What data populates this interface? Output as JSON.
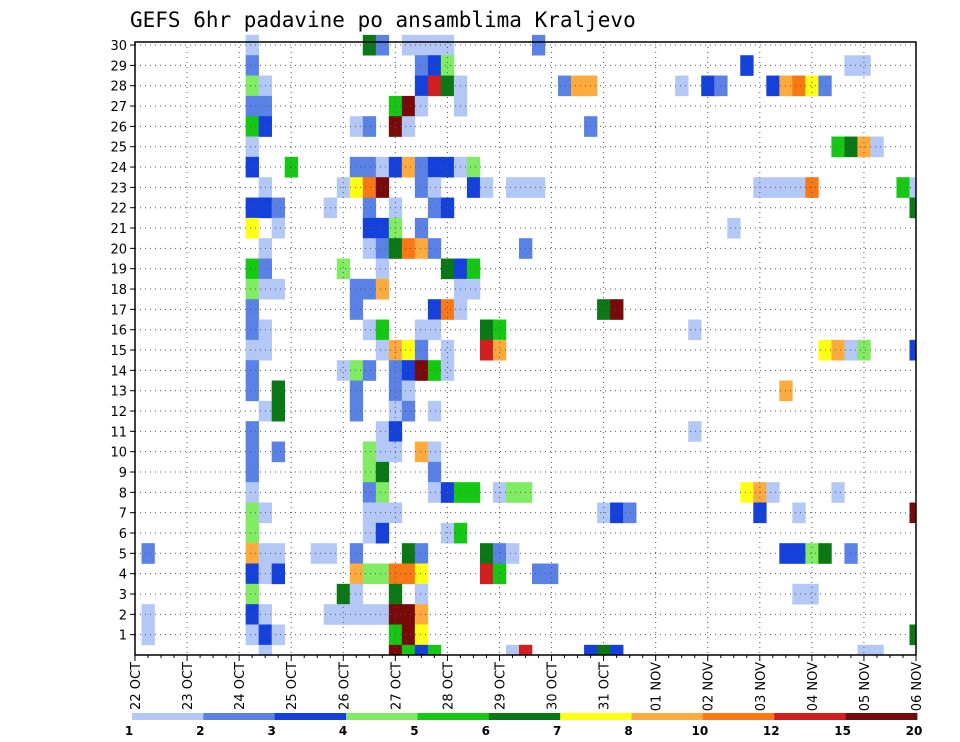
{
  "chart_data": {
    "type": "heatmap",
    "title": "GEFS 6hr padavine po ansamblima Kraljevo",
    "xlabel": "",
    "ylabel": "",
    "x_tick_labels": [
      "22 OCT",
      "23 OCT",
      "24 OCT",
      "25 OCT",
      "26 OCT",
      "27 OCT",
      "28 OCT",
      "29 OCT",
      "30 OCT",
      "31 OCT",
      "01 NOV",
      "02 NOV",
      "03 NOV",
      "04 NOV",
      "05 NOV",
      "06 NOV"
    ],
    "y_tick_labels": [
      "1",
      "2",
      "3",
      "4",
      "5",
      "6",
      "7",
      "8",
      "9",
      "10",
      "11",
      "12",
      "13",
      "14",
      "15",
      "16",
      "17",
      "18",
      "19",
      "20",
      "21",
      "22",
      "23",
      "24",
      "25",
      "26",
      "27",
      "28",
      "29",
      "30"
    ],
    "ylim": [
      0,
      30
    ],
    "time_steps": 61,
    "grid": true,
    "colorbar": {
      "labels": [
        "1",
        "2",
        "3",
        "4",
        "5",
        "6",
        "7",
        "8",
        "10",
        "12",
        "15",
        "20"
      ],
      "colors": [
        "#b4c8f8",
        "#5a82e6",
        "#1440dc",
        "#82eb64",
        "#14c814",
        "#0a7814",
        "#ffff14",
        "#ffaa3c",
        "#fa7814",
        "#d21e1e",
        "#780a0a"
      ]
    },
    "cells": [
      {
        "m": 30,
        "c": [
          [
            9,
            0
          ],
          [
            18,
            5
          ],
          [
            19,
            1
          ],
          [
            21,
            0
          ],
          [
            22,
            0
          ],
          [
            23,
            0
          ],
          [
            24,
            0
          ],
          [
            31,
            1
          ]
        ]
      },
      {
        "m": 29,
        "c": [
          [
            9,
            1
          ],
          [
            22,
            1
          ],
          [
            23,
            2
          ],
          [
            24,
            3
          ],
          [
            47,
            2
          ],
          [
            55,
            0
          ],
          [
            56,
            0
          ]
        ]
      },
      {
        "m": 28,
        "c": [
          [
            9,
            3
          ],
          [
            10,
            0
          ],
          [
            22,
            2
          ],
          [
            23,
            9
          ],
          [
            24,
            5
          ],
          [
            25,
            0
          ],
          [
            33,
            1
          ],
          [
            34,
            7
          ],
          [
            35,
            7
          ],
          [
            42,
            0
          ],
          [
            44,
            2
          ],
          [
            45,
            1
          ],
          [
            49,
            2
          ],
          [
            50,
            7
          ],
          [
            51,
            8
          ],
          [
            52,
            6
          ],
          [
            53,
            1
          ]
        ]
      },
      {
        "m": 27,
        "c": [
          [
            9,
            1
          ],
          [
            10,
            1
          ],
          [
            20,
            4
          ],
          [
            21,
            10
          ],
          [
            22,
            0
          ],
          [
            25,
            0
          ]
        ]
      },
      {
        "m": 26,
        "c": [
          [
            9,
            4
          ],
          [
            10,
            2
          ],
          [
            17,
            0
          ],
          [
            18,
            1
          ],
          [
            20,
            10
          ],
          [
            21,
            0
          ],
          [
            35,
            1
          ]
        ]
      },
      {
        "m": 25,
        "c": [
          [
            9,
            0
          ],
          [
            54,
            4
          ],
          [
            55,
            5
          ],
          [
            56,
            7
          ],
          [
            57,
            0
          ]
        ]
      },
      {
        "m": 24,
        "c": [
          [
            9,
            2
          ],
          [
            12,
            4
          ],
          [
            17,
            1
          ],
          [
            18,
            1
          ],
          [
            19,
            0
          ],
          [
            20,
            2
          ],
          [
            21,
            7
          ],
          [
            22,
            1
          ],
          [
            23,
            2
          ],
          [
            24,
            2
          ],
          [
            25,
            0
          ],
          [
            26,
            3
          ]
        ]
      },
      {
        "m": 23,
        "c": [
          [
            10,
            0
          ],
          [
            16,
            0
          ],
          [
            17,
            6
          ],
          [
            18,
            8
          ],
          [
            19,
            10
          ],
          [
            22,
            1
          ],
          [
            23,
            0
          ],
          [
            26,
            2
          ],
          [
            27,
            0
          ],
          [
            29,
            0
          ],
          [
            30,
            0
          ],
          [
            31,
            0
          ],
          [
            48,
            0
          ],
          [
            49,
            0
          ],
          [
            50,
            0
          ],
          [
            51,
            0
          ],
          [
            52,
            8
          ],
          [
            59,
            4
          ],
          [
            60,
            0
          ]
        ]
      },
      {
        "m": 22,
        "c": [
          [
            9,
            2
          ],
          [
            10,
            2
          ],
          [
            11,
            1
          ],
          [
            15,
            0
          ],
          [
            18,
            1
          ],
          [
            20,
            0
          ],
          [
            23,
            1
          ],
          [
            24,
            2
          ],
          [
            60,
            5
          ]
        ]
      },
      {
        "m": 21,
        "c": [
          [
            9,
            6
          ],
          [
            11,
            0
          ],
          [
            18,
            2
          ],
          [
            19,
            2
          ],
          [
            20,
            3
          ],
          [
            22,
            1
          ],
          [
            46,
            0
          ]
        ]
      },
      {
        "m": 20,
        "c": [
          [
            10,
            0
          ],
          [
            18,
            0
          ],
          [
            19,
            1
          ],
          [
            20,
            5
          ],
          [
            21,
            8
          ],
          [
            22,
            7
          ],
          [
            23,
            1
          ],
          [
            30,
            1
          ]
        ]
      },
      {
        "m": 19,
        "c": [
          [
            9,
            4
          ],
          [
            10,
            1
          ],
          [
            16,
            3
          ],
          [
            19,
            0
          ],
          [
            24,
            5
          ],
          [
            25,
            2
          ],
          [
            26,
            4
          ]
        ]
      },
      {
        "m": 18,
        "c": [
          [
            9,
            3
          ],
          [
            10,
            0
          ],
          [
            11,
            0
          ],
          [
            17,
            1
          ],
          [
            18,
            1
          ],
          [
            19,
            7
          ],
          [
            25,
            0
          ],
          [
            26,
            0
          ]
        ]
      },
      {
        "m": 17,
        "c": [
          [
            9,
            1
          ],
          [
            17,
            1
          ],
          [
            23,
            2
          ],
          [
            24,
            8
          ],
          [
            25,
            0
          ],
          [
            36,
            5
          ],
          [
            37,
            10
          ]
        ]
      },
      {
        "m": 16,
        "c": [
          [
            9,
            1
          ],
          [
            10,
            0
          ],
          [
            18,
            0
          ],
          [
            19,
            4
          ],
          [
            22,
            0
          ],
          [
            23,
            0
          ],
          [
            27,
            5
          ],
          [
            28,
            4
          ],
          [
            43,
            0
          ]
        ]
      },
      {
        "m": 15,
        "c": [
          [
            9,
            0
          ],
          [
            10,
            0
          ],
          [
            19,
            0
          ],
          [
            20,
            7
          ],
          [
            21,
            6
          ],
          [
            22,
            1
          ],
          [
            24,
            0
          ],
          [
            27,
            9
          ],
          [
            28,
            7
          ],
          [
            53,
            6
          ],
          [
            54,
            7
          ],
          [
            55,
            0
          ],
          [
            56,
            3
          ],
          [
            60,
            2
          ]
        ]
      },
      {
        "m": 14,
        "c": [
          [
            9,
            1
          ],
          [
            16,
            0
          ],
          [
            17,
            3
          ],
          [
            18,
            1
          ],
          [
            20,
            1
          ],
          [
            21,
            2
          ],
          [
            22,
            10
          ],
          [
            23,
            4
          ],
          [
            24,
            0
          ]
        ]
      },
      {
        "m": 13,
        "c": [
          [
            9,
            1
          ],
          [
            11,
            5
          ],
          [
            17,
            1
          ],
          [
            20,
            1
          ],
          [
            21,
            0
          ],
          [
            50,
            7
          ]
        ]
      },
      {
        "m": 12,
        "c": [
          [
            10,
            0
          ],
          [
            11,
            5
          ],
          [
            17,
            1
          ],
          [
            20,
            0
          ],
          [
            21,
            1
          ],
          [
            23,
            0
          ]
        ]
      },
      {
        "m": 11,
        "c": [
          [
            9,
            1
          ],
          [
            19,
            0
          ],
          [
            20,
            2
          ],
          [
            43,
            0
          ]
        ]
      },
      {
        "m": 10,
        "c": [
          [
            9,
            1
          ],
          [
            11,
            1
          ],
          [
            18,
            3
          ],
          [
            19,
            0
          ],
          [
            20,
            0
          ],
          [
            22,
            7
          ],
          [
            23,
            0
          ]
        ]
      },
      {
        "m": 9,
        "c": [
          [
            9,
            1
          ],
          [
            18,
            3
          ],
          [
            19,
            5
          ],
          [
            23,
            1
          ]
        ]
      },
      {
        "m": 8,
        "c": [
          [
            9,
            0
          ],
          [
            18,
            1
          ],
          [
            19,
            3
          ],
          [
            23,
            0
          ],
          [
            24,
            2
          ],
          [
            25,
            4
          ],
          [
            26,
            4
          ],
          [
            28,
            0
          ],
          [
            29,
            3
          ],
          [
            30,
            3
          ],
          [
            47,
            6
          ],
          [
            48,
            7
          ],
          [
            49,
            0
          ],
          [
            54,
            0
          ]
        ]
      },
      {
        "m": 7,
        "c": [
          [
            9,
            3
          ],
          [
            10,
            0
          ],
          [
            18,
            0
          ],
          [
            19,
            0
          ],
          [
            20,
            0
          ],
          [
            36,
            0
          ],
          [
            37,
            2
          ],
          [
            38,
            1
          ],
          [
            48,
            2
          ],
          [
            51,
            0
          ],
          [
            60,
            10
          ]
        ]
      },
      {
        "m": 6,
        "c": [
          [
            9,
            3
          ],
          [
            18,
            0
          ],
          [
            19,
            2
          ],
          [
            24,
            0
          ],
          [
            25,
            4
          ]
        ]
      },
      {
        "m": 5,
        "c": [
          [
            1,
            1
          ],
          [
            9,
            7
          ],
          [
            10,
            0
          ],
          [
            11,
            0
          ],
          [
            14,
            0
          ],
          [
            15,
            0
          ],
          [
            17,
            1
          ],
          [
            21,
            5
          ],
          [
            22,
            1
          ],
          [
            27,
            5
          ],
          [
            28,
            1
          ],
          [
            29,
            0
          ],
          [
            50,
            2
          ],
          [
            51,
            2
          ],
          [
            52,
            3
          ],
          [
            53,
            5
          ],
          [
            55,
            1
          ]
        ]
      },
      {
        "m": 4,
        "c": [
          [
            9,
            2
          ],
          [
            10,
            0
          ],
          [
            11,
            2
          ],
          [
            17,
            7
          ],
          [
            18,
            3
          ],
          [
            19,
            3
          ],
          [
            20,
            8
          ],
          [
            21,
            8
          ],
          [
            22,
            6
          ],
          [
            27,
            9
          ],
          [
            28,
            4
          ],
          [
            31,
            1
          ],
          [
            32,
            1
          ]
        ]
      },
      {
        "m": 3,
        "c": [
          [
            9,
            3
          ],
          [
            16,
            5
          ],
          [
            17,
            0
          ],
          [
            20,
            5
          ],
          [
            22,
            0
          ],
          [
            51,
            0
          ],
          [
            52,
            0
          ]
        ]
      },
      {
        "m": 2,
        "c": [
          [
            1,
            0
          ],
          [
            9,
            2
          ],
          [
            10,
            0
          ],
          [
            15,
            0
          ],
          [
            16,
            0
          ],
          [
            17,
            0
          ],
          [
            18,
            0
          ],
          [
            19,
            0
          ],
          [
            20,
            10
          ],
          [
            21,
            10
          ],
          [
            22,
            7
          ]
        ]
      },
      {
        "m": 1,
        "c": [
          [
            1,
            0
          ],
          [
            9,
            0
          ],
          [
            10,
            2
          ],
          [
            11,
            0
          ],
          [
            20,
            4
          ],
          [
            21,
            10
          ],
          [
            22,
            6
          ],
          [
            60,
            5
          ]
        ]
      },
      {
        "m": 0,
        "c": [
          [
            10,
            0
          ],
          [
            20,
            10
          ],
          [
            21,
            4
          ],
          [
            22,
            2
          ],
          [
            23,
            4
          ],
          [
            29,
            0
          ],
          [
            30,
            9
          ],
          [
            35,
            2
          ],
          [
            36,
            5
          ],
          [
            37,
            2
          ],
          [
            56,
            0
          ],
          [
            57,
            0
          ]
        ]
      }
    ]
  }
}
